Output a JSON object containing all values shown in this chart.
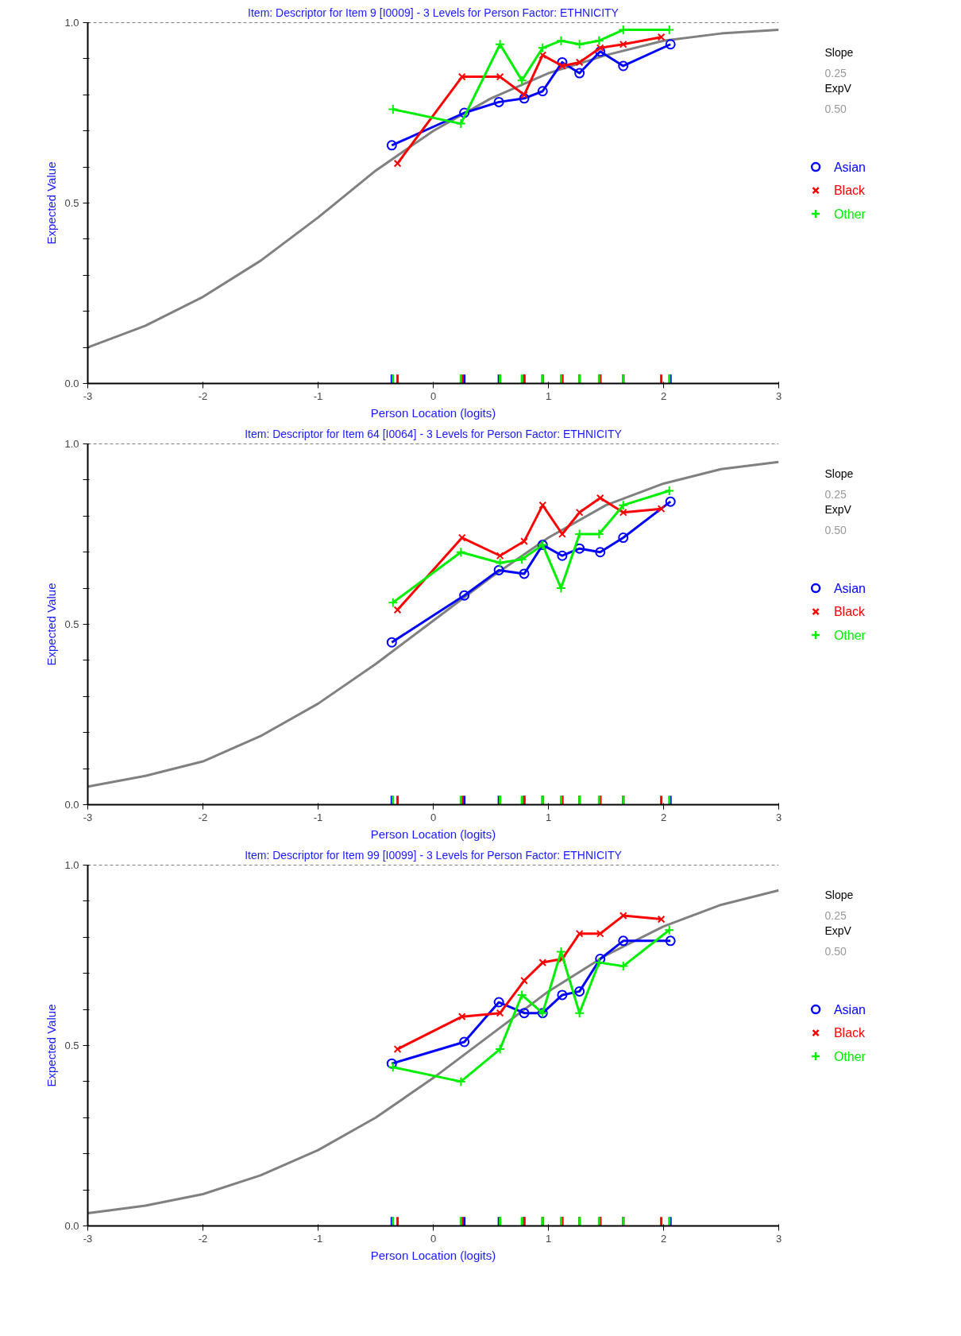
{
  "chart_data": [
    {
      "type": "line",
      "title": "Item: Descriptor for Item 9 [I0009] - 3 Levels for Person Factor: ETHNICITY",
      "xlabel": "Person Location (logits)",
      "ylabel": "Expected Value",
      "xlim": [
        -3,
        3
      ],
      "ylim": [
        0,
        1
      ],
      "xticks": [
        -3,
        -2,
        -1,
        0,
        1,
        2,
        3
      ],
      "yticks": [
        {
          "value": 0,
          "label": "0.0"
        },
        {
          "value": 0.1,
          "label": null
        },
        {
          "value": 0.2,
          "label": null
        },
        {
          "value": 0.3,
          "label": null
        },
        {
          "value": 0.4,
          "label": null
        },
        {
          "value": 0.5,
          "label": "0.5"
        },
        {
          "value": 0.6,
          "label": null
        },
        {
          "value": 0.7,
          "label": null
        },
        {
          "value": 0.8,
          "label": null
        },
        {
          "value": 0.9,
          "label": null
        },
        {
          "value": 1,
          "label": "1.0"
        }
      ],
      "grid": false,
      "legend": "right",
      "annotations": [
        "Slope",
        "0.25",
        "ExpV",
        "0.50"
      ],
      "ref_lines": [
        {
          "axis": "y",
          "value": 1,
          "label": null,
          "color": "#000000",
          "line_style": "dashed"
        }
      ],
      "series": [
        {
          "color": "#808080",
          "marker": "none",
          "x": [
            -3,
            -2.5,
            -2,
            -1.5,
            -1,
            -0.5,
            0,
            0.5,
            1,
            1.5,
            2,
            2.5,
            3
          ],
          "values": [
            0.1,
            0.16,
            0.24,
            0.34,
            0.46,
            0.59,
            0.7,
            0.79,
            0.86,
            0.91,
            0.95,
            0.97,
            0.98
          ]
        },
        {
          "name": "Asian",
          "color": "#0000ff",
          "marker": "circle",
          "x": [
            -0.36,
            0.27,
            0.57,
            0.79,
            0.95,
            1.12,
            1.27,
            1.45,
            1.65,
            2.06
          ],
          "values": [
            0.66,
            0.75,
            0.78,
            0.79,
            0.81,
            0.89,
            0.86,
            0.92,
            0.88,
            0.94
          ]
        },
        {
          "name": "Black",
          "color": "#ff0000",
          "marker": "x",
          "x": [
            -0.31,
            0.25,
            0.58,
            0.79,
            0.95,
            1.12,
            1.27,
            1.45,
            1.65,
            1.98
          ],
          "values": [
            0.61,
            0.85,
            0.85,
            0.8,
            0.91,
            0.88,
            0.89,
            0.93,
            0.94,
            0.96
          ]
        },
        {
          "name": "Other",
          "color": "#00ee00",
          "marker": "cross",
          "x": [
            -0.35,
            0.24,
            0.58,
            0.77,
            0.95,
            1.11,
            1.27,
            1.44,
            1.65,
            2.05
          ],
          "values": [
            0.76,
            0.72,
            0.94,
            0.84,
            0.93,
            0.95,
            0.94,
            0.95,
            0.98,
            0.98
          ]
        }
      ]
    },
    {
      "type": "line",
      "title": "Item: Descriptor for Item 64 [I0064] - 3 Levels for Person Factor: ETHNICITY",
      "xlabel": "Person Location (logits)",
      "ylabel": "Expected Value",
      "xlim": [
        -3,
        3
      ],
      "ylim": [
        0,
        1
      ],
      "xticks": [
        -3,
        -2,
        -1,
        0,
        1,
        2,
        3
      ],
      "yticks": [
        {
          "value": 0,
          "label": "0.0"
        },
        {
          "value": 0.1,
          "label": null
        },
        {
          "value": 0.2,
          "label": null
        },
        {
          "value": 0.3,
          "label": null
        },
        {
          "value": 0.4,
          "label": null
        },
        {
          "value": 0.5,
          "label": "0.5"
        },
        {
          "value": 0.6,
          "label": null
        },
        {
          "value": 0.7,
          "label": null
        },
        {
          "value": 0.8,
          "label": null
        },
        {
          "value": 0.9,
          "label": null
        },
        {
          "value": 1,
          "label": "1.0"
        }
      ],
      "grid": false,
      "legend": "right",
      "annotations": [
        "Slope",
        "0.25",
        "ExpV",
        "0.50"
      ],
      "ref_lines": [
        {
          "axis": "y",
          "value": 1,
          "label": null,
          "color": "#000000",
          "line_style": "dashed"
        }
      ],
      "series": [
        {
          "color": "#808080",
          "marker": "none",
          "x": [
            -3,
            -2.5,
            -2,
            -1.5,
            -1,
            -0.5,
            0,
            0.5,
            1,
            1.5,
            2,
            2.5,
            3
          ],
          "values": [
            0.05,
            0.08,
            0.12,
            0.19,
            0.28,
            0.39,
            0.51,
            0.63,
            0.74,
            0.83,
            0.89,
            0.93,
            0.95
          ]
        },
        {
          "name": "Asian",
          "color": "#0000ff",
          "marker": "circle",
          "x": [
            -0.36,
            0.27,
            0.57,
            0.79,
            0.95,
            1.12,
            1.27,
            1.45,
            1.65,
            2.06
          ],
          "values": [
            0.45,
            0.58,
            0.65,
            0.64,
            0.72,
            0.69,
            0.71,
            0.7,
            0.74,
            0.84
          ]
        },
        {
          "name": "Black",
          "color": "#ff0000",
          "marker": "x",
          "x": [
            -0.31,
            0.25,
            0.58,
            0.79,
            0.95,
            1.12,
            1.27,
            1.45,
            1.65,
            1.98
          ],
          "values": [
            0.54,
            0.74,
            0.69,
            0.73,
            0.83,
            0.75,
            0.81,
            0.85,
            0.81,
            0.82
          ]
        },
        {
          "name": "Other",
          "color": "#00ee00",
          "marker": "cross",
          "x": [
            -0.35,
            0.24,
            0.58,
            0.77,
            0.95,
            1.11,
            1.27,
            1.44,
            1.65,
            2.05
          ],
          "values": [
            0.56,
            0.7,
            0.67,
            0.68,
            0.72,
            0.6,
            0.75,
            0.75,
            0.83,
            0.87
          ]
        }
      ]
    },
    {
      "type": "line",
      "title": "Item: Descriptor for Item 99 [I0099] - 3 Levels for Person Factor: ETHNICITY",
      "xlabel": "Person Location (logits)",
      "ylabel": "Expected Value",
      "xlim": [
        -3,
        3
      ],
      "ylim": [
        0,
        1
      ],
      "xticks": [
        -3,
        -2,
        -1,
        0,
        1,
        2,
        3
      ],
      "yticks": [
        {
          "value": 0,
          "label": "0.0"
        },
        {
          "value": 0.1,
          "label": null
        },
        {
          "value": 0.2,
          "label": null
        },
        {
          "value": 0.3,
          "label": null
        },
        {
          "value": 0.4,
          "label": null
        },
        {
          "value": 0.5,
          "label": "0.5"
        },
        {
          "value": 0.6,
          "label": null
        },
        {
          "value": 0.7,
          "label": null
        },
        {
          "value": 0.8,
          "label": null
        },
        {
          "value": 0.9,
          "label": null
        },
        {
          "value": 1,
          "label": "1.0"
        }
      ],
      "grid": false,
      "legend": "right",
      "annotations": [
        "Slope",
        "0.25",
        "ExpV",
        "0.50"
      ],
      "ref_lines": [
        {
          "axis": "y",
          "value": 1,
          "label": null,
          "color": "#000000",
          "line_style": "dashed"
        }
      ],
      "series": [
        {
          "color": "#808080",
          "marker": "none",
          "x": [
            -3,
            -2.5,
            -2,
            -1.5,
            -1,
            -0.5,
            0,
            0.5,
            1,
            1.5,
            2,
            2.5,
            3
          ],
          "values": [
            0.035,
            0.056,
            0.088,
            0.14,
            0.21,
            0.3,
            0.41,
            0.53,
            0.65,
            0.75,
            0.83,
            0.89,
            0.93
          ]
        },
        {
          "name": "Asian",
          "color": "#0000ff",
          "marker": "circle",
          "x": [
            -0.36,
            0.27,
            0.57,
            0.79,
            0.95,
            1.12,
            1.27,
            1.45,
            1.65,
            2.06
          ],
          "values": [
            0.45,
            0.51,
            0.62,
            0.59,
            0.59,
            0.64,
            0.65,
            0.74,
            0.79,
            0.79
          ]
        },
        {
          "name": "Black",
          "color": "#ff0000",
          "marker": "x",
          "x": [
            -0.31,
            0.25,
            0.58,
            0.79,
            0.95,
            1.12,
            1.27,
            1.45,
            1.65,
            1.98
          ],
          "values": [
            0.49,
            0.58,
            0.59,
            0.68,
            0.73,
            0.74,
            0.81,
            0.81,
            0.86,
            0.85
          ]
        },
        {
          "name": "Other",
          "color": "#00ee00",
          "marker": "cross",
          "x": [
            -0.35,
            0.24,
            0.58,
            0.77,
            0.95,
            1.11,
            1.27,
            1.44,
            1.65,
            2.05
          ],
          "values": [
            0.44,
            0.4,
            0.49,
            0.64,
            0.59,
            0.76,
            0.59,
            0.73,
            0.72,
            0.82
          ]
        }
      ]
    }
  ]
}
